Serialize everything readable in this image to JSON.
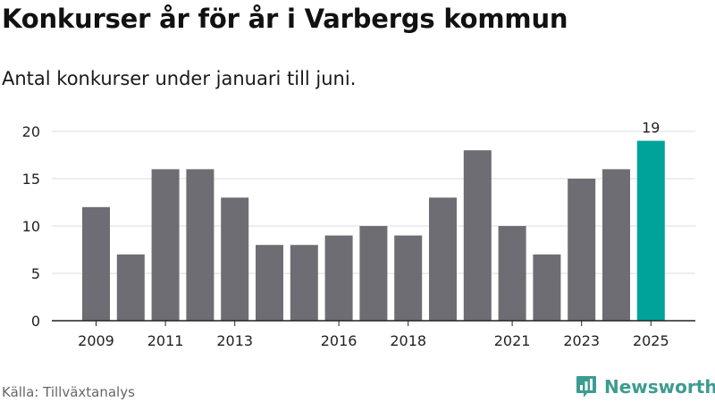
{
  "title": "Konkurser år för år i Varbergs kommun",
  "subtitle": "Antal konkurser under januari till juni.",
  "source": "Källa: Tillväxtanalys",
  "brand": {
    "name": "Newsworthy",
    "logo_icon": "newsworthy-logo-icon"
  },
  "colors": {
    "bar": "#6e6d73",
    "highlight": "#00a39a",
    "grid": "#dddddd",
    "axis": "#222222"
  },
  "chart_data": {
    "type": "bar",
    "categories": [
      "2009",
      "2010",
      "2011",
      "2012",
      "2013",
      "2014",
      "2015",
      "2016",
      "2017",
      "2018",
      "2019",
      "2020",
      "2021",
      "2022",
      "2023",
      "2024",
      "2025"
    ],
    "values": [
      12,
      7,
      16,
      16,
      13,
      8,
      8,
      9,
      10,
      9,
      13,
      18,
      10,
      7,
      15,
      16,
      19
    ],
    "tick_labels": [
      "2009",
      "2011",
      "2013",
      "2016",
      "2018",
      "2021",
      "2023",
      "2025"
    ],
    "highlight_category": "2025",
    "data_labels": [
      {
        "category": "2025",
        "text": "19"
      }
    ],
    "yticks": [
      0,
      5,
      10,
      15,
      20
    ],
    "ylim": [
      0,
      20
    ],
    "grid": true,
    "legend": "none",
    "xlabel": "",
    "ylabel": ""
  }
}
